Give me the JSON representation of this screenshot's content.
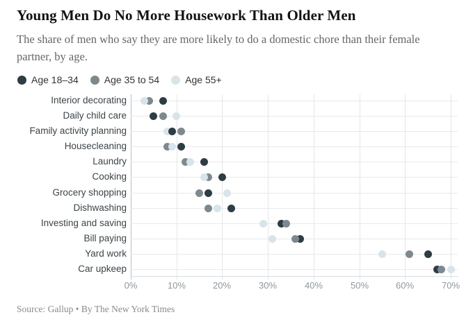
{
  "header": {
    "title": "Young Men Do No More Housework Than Older Men",
    "subtitle": "The share of men who say they are more likely to do a domestic chore than their female partner, by age."
  },
  "legend": [
    {
      "key": "a18",
      "label": "Age 18–34",
      "color": "#2e3c43"
    },
    {
      "key": "a35",
      "label": "Age 35 to 54",
      "color": "#7d898e"
    },
    {
      "key": "a55",
      "label": "Age 55+",
      "color": "#d8e4e9"
    }
  ],
  "chart_data": {
    "type": "scatter",
    "title": "Young Men Do No More Housework Than Older Men",
    "unit": "%",
    "xlim": [
      0,
      72
    ],
    "grid": true,
    "legend_position": "top-left",
    "x_ticks": [
      0,
      10,
      20,
      30,
      40,
      50,
      60,
      70
    ],
    "x_tick_labels": [
      "0%",
      "10%",
      "20%",
      "30%",
      "40%",
      "50%",
      "60%",
      "70%"
    ],
    "categories": [
      "Interior decorating",
      "Daily child care",
      "Family activity planning",
      "Housecleaning",
      "Laundry",
      "Cooking",
      "Grocery shopping",
      "Dishwashing",
      "Investing and saving",
      "Bill paying",
      "Yard work",
      "Car upkeep"
    ],
    "series": [
      {
        "key": "a18",
        "name": "Age 18–34",
        "color": "#2e3c43",
        "values": [
          7,
          5,
          9,
          11,
          16,
          20,
          17,
          22,
          33,
          37,
          65,
          67
        ]
      },
      {
        "key": "a35",
        "name": "Age 35 to 54",
        "color": "#7d898e",
        "values": [
          4,
          7,
          11,
          8,
          12,
          17,
          15,
          17,
          34,
          36,
          61,
          68
        ]
      },
      {
        "key": "a55",
        "name": "Age 55+",
        "color": "#d8e4e9",
        "values": [
          3,
          10,
          8,
          9,
          13,
          16,
          21,
          19,
          29,
          31,
          55,
          70
        ]
      }
    ],
    "draw_order": [
      [
        "a35",
        "a55",
        "a18"
      ],
      [
        "a55",
        "a18",
        "a35"
      ],
      [
        "a55",
        "a35",
        "a18"
      ],
      [
        "a35",
        "a55",
        "a18"
      ],
      [
        "a35",
        "a55",
        "a18"
      ],
      [
        "a35",
        "a55",
        "a18"
      ],
      [
        "a35",
        "a55",
        "a18"
      ],
      [
        "a35",
        "a55",
        "a18"
      ],
      [
        "a55",
        "a18",
        "a35"
      ],
      [
        "a55",
        "a18",
        "a35"
      ],
      [
        "a55",
        "a35",
        "a18"
      ],
      [
        "a18",
        "a35",
        "a55"
      ]
    ]
  },
  "footer": {
    "source": "Source: Gallup • By The New York Times"
  }
}
